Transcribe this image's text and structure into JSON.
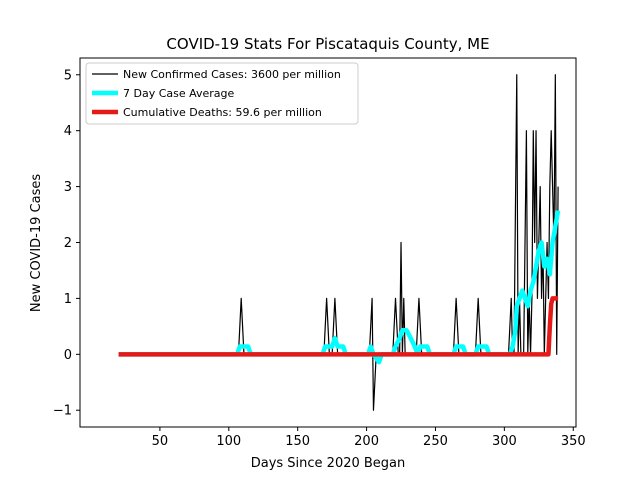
{
  "chart_data": {
    "type": "line",
    "title": "COVID-19 Stats For Piscataquis County, ME",
    "xlabel": "Days Since 2020 Began",
    "ylabel": "New COVID-19 Cases",
    "xlim": [
      -8,
      352
    ],
    "ylim": [
      -1.3,
      5.3
    ],
    "xticks": [
      50,
      100,
      150,
      200,
      250,
      300,
      350
    ],
    "yticks": [
      -1,
      0,
      1,
      2,
      3,
      4,
      5
    ],
    "grid": false,
    "legend_position": "top-left",
    "series": [
      {
        "name": "New Confirmed Cases: 3600 per million",
        "color": "#000000",
        "style": "thin-line",
        "points": [
          [
            20,
            0
          ],
          [
            107,
            0
          ],
          [
            109,
            1
          ],
          [
            111,
            0
          ],
          [
            169,
            0
          ],
          [
            171,
            1
          ],
          [
            173,
            0
          ],
          [
            175,
            0
          ],
          [
            177,
            1
          ],
          [
            179,
            0
          ],
          [
            202,
            0
          ],
          [
            204,
            1
          ],
          [
            205,
            -1
          ],
          [
            207,
            0
          ],
          [
            219,
            0
          ],
          [
            221,
            1
          ],
          [
            223,
            0
          ],
          [
            224,
            0
          ],
          [
            225,
            2
          ],
          [
            226,
            0
          ],
          [
            227,
            1
          ],
          [
            228,
            0
          ],
          [
            236,
            0
          ],
          [
            238,
            1
          ],
          [
            240,
            0
          ],
          [
            263,
            0
          ],
          [
            265,
            1
          ],
          [
            267,
            0
          ],
          [
            279,
            0
          ],
          [
            281,
            1
          ],
          [
            283,
            0
          ],
          [
            303,
            0
          ],
          [
            305,
            1
          ],
          [
            306,
            0
          ],
          [
            307,
            0
          ],
          [
            309,
            5
          ],
          [
            310,
            0
          ],
          [
            311,
            1
          ],
          [
            312,
            0
          ],
          [
            314,
            0
          ],
          [
            315,
            2
          ],
          [
            316,
            4
          ],
          [
            317,
            0
          ],
          [
            318,
            1
          ],
          [
            319,
            0
          ],
          [
            320,
            1
          ],
          [
            321,
            4
          ],
          [
            322,
            2
          ],
          [
            323,
            4
          ],
          [
            324,
            1
          ],
          [
            325,
            2
          ],
          [
            326,
            3
          ],
          [
            327,
            1
          ],
          [
            328,
            2
          ],
          [
            329,
            0
          ],
          [
            330,
            1
          ],
          [
            331,
            2
          ],
          [
            332,
            1
          ],
          [
            333,
            3
          ],
          [
            334,
            4
          ],
          [
            335,
            3
          ],
          [
            336,
            2
          ],
          [
            337,
            5
          ],
          [
            338,
            0
          ],
          [
            339,
            3
          ]
        ]
      },
      {
        "name": "7 Day Case Average",
        "color": "#00ffff",
        "style": "thick-line",
        "points": [
          [
            20,
            0
          ],
          [
            106,
            0
          ],
          [
            108,
            0.14
          ],
          [
            114,
            0.14
          ],
          [
            116,
            0
          ],
          [
            168,
            0
          ],
          [
            170,
            0.14
          ],
          [
            175,
            0.14
          ],
          [
            177,
            0.29
          ],
          [
            179,
            0.14
          ],
          [
            183,
            0.14
          ],
          [
            185,
            0
          ],
          [
            201,
            0
          ],
          [
            203,
            0.14
          ],
          [
            205,
            0
          ],
          [
            209,
            -0.14
          ],
          [
            211,
            0
          ],
          [
            219,
            0
          ],
          [
            221,
            0.14
          ],
          [
            224,
            0.29
          ],
          [
            226,
            0.43
          ],
          [
            229,
            0.43
          ],
          [
            232,
            0.29
          ],
          [
            235,
            0.14
          ],
          [
            237,
            0
          ],
          [
            239,
            0.14
          ],
          [
            244,
            0.14
          ],
          [
            246,
            0
          ],
          [
            263,
            0
          ],
          [
            265,
            0.14
          ],
          [
            270,
            0.14
          ],
          [
            272,
            0
          ],
          [
            279,
            0
          ],
          [
            281,
            0.14
          ],
          [
            287,
            0.14
          ],
          [
            289,
            0
          ],
          [
            304,
            0
          ],
          [
            306,
            0.14
          ],
          [
            308,
            0.43
          ],
          [
            309,
            0.86
          ],
          [
            311,
            1.0
          ],
          [
            313,
            1.14
          ],
          [
            315,
            1.0
          ],
          [
            317,
            0.86
          ],
          [
            319,
            1.14
          ],
          [
            321,
            1.29
          ],
          [
            323,
            1.57
          ],
          [
            325,
            1.86
          ],
          [
            327,
            2.0
          ],
          [
            329,
            1.57
          ],
          [
            331,
            1.71
          ],
          [
            333,
            1.43
          ],
          [
            335,
            2.0
          ],
          [
            337,
            2.29
          ],
          [
            339,
            2.57
          ]
        ]
      },
      {
        "name": "Cumulative Deaths: 59.6 per million",
        "color": "#e61919",
        "style": "thick-line",
        "points": [
          [
            20,
            0
          ],
          [
            332,
            0
          ],
          [
            333,
            0.5
          ],
          [
            334,
            0.9
          ],
          [
            335,
            1.0
          ],
          [
            339,
            1.0
          ]
        ]
      }
    ]
  }
}
